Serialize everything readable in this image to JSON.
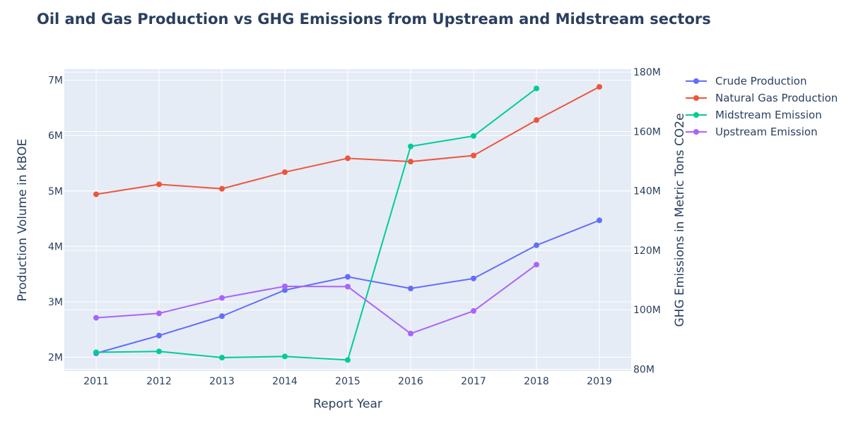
{
  "chart_data": {
    "type": "line",
    "title": "Oil and Gas Production vs GHG Emissions from Upstream and Midstream sectors",
    "xlabel": "Report Year",
    "ylabel": "Production Volume in kBOE",
    "y2label": "GHG Emissions in Metric Tons CO2e",
    "categories": [
      "2011",
      "2012",
      "2013",
      "2014",
      "2015",
      "2016",
      "2017",
      "2018",
      "2019"
    ],
    "ylim": [
      1750000,
      7200000
    ],
    "y2lim": [
      79400000,
      181000000
    ],
    "yticks": [
      {
        "value": 2000000,
        "label": "2M"
      },
      {
        "value": 3000000,
        "label": "3M"
      },
      {
        "value": 4000000,
        "label": "4M"
      },
      {
        "value": 5000000,
        "label": "5M"
      },
      {
        "value": 6000000,
        "label": "6M"
      },
      {
        "value": 7000000,
        "label": "7M"
      }
    ],
    "y2ticks": [
      {
        "value": 80000000,
        "label": "80M"
      },
      {
        "value": 100000000,
        "label": "100M"
      },
      {
        "value": 120000000,
        "label": "120M"
      },
      {
        "value": 140000000,
        "label": "140M"
      },
      {
        "value": 160000000,
        "label": "160M"
      },
      {
        "value": 180000000,
        "label": "180M"
      }
    ],
    "grid": true,
    "legend_position": "top-right",
    "series": [
      {
        "name": "Crude Production",
        "axis": "left",
        "color": "#636efa",
        "values": [
          2070000,
          2390000,
          2740000,
          3210000,
          3450000,
          3240000,
          3420000,
          4020000,
          4470000
        ]
      },
      {
        "name": "Natural Gas Production",
        "axis": "left",
        "color": "#ef553b",
        "values": [
          4940000,
          5120000,
          5040000,
          5340000,
          5590000,
          5530000,
          5640000,
          6280000,
          6880000
        ]
      },
      {
        "name": "Midstream Emission",
        "axis": "right",
        "color": "#00cc96",
        "values": [
          85700000,
          86000000,
          83900000,
          84300000,
          83100000,
          155000000,
          158500000,
          174500000,
          null
        ]
      },
      {
        "name": "Upstream Emission",
        "axis": "right",
        "color": "#ab63fa",
        "values": [
          97300000,
          98800000,
          104000000,
          107900000,
          107800000,
          92000000,
          99600000,
          115200000,
          null
        ]
      }
    ]
  }
}
